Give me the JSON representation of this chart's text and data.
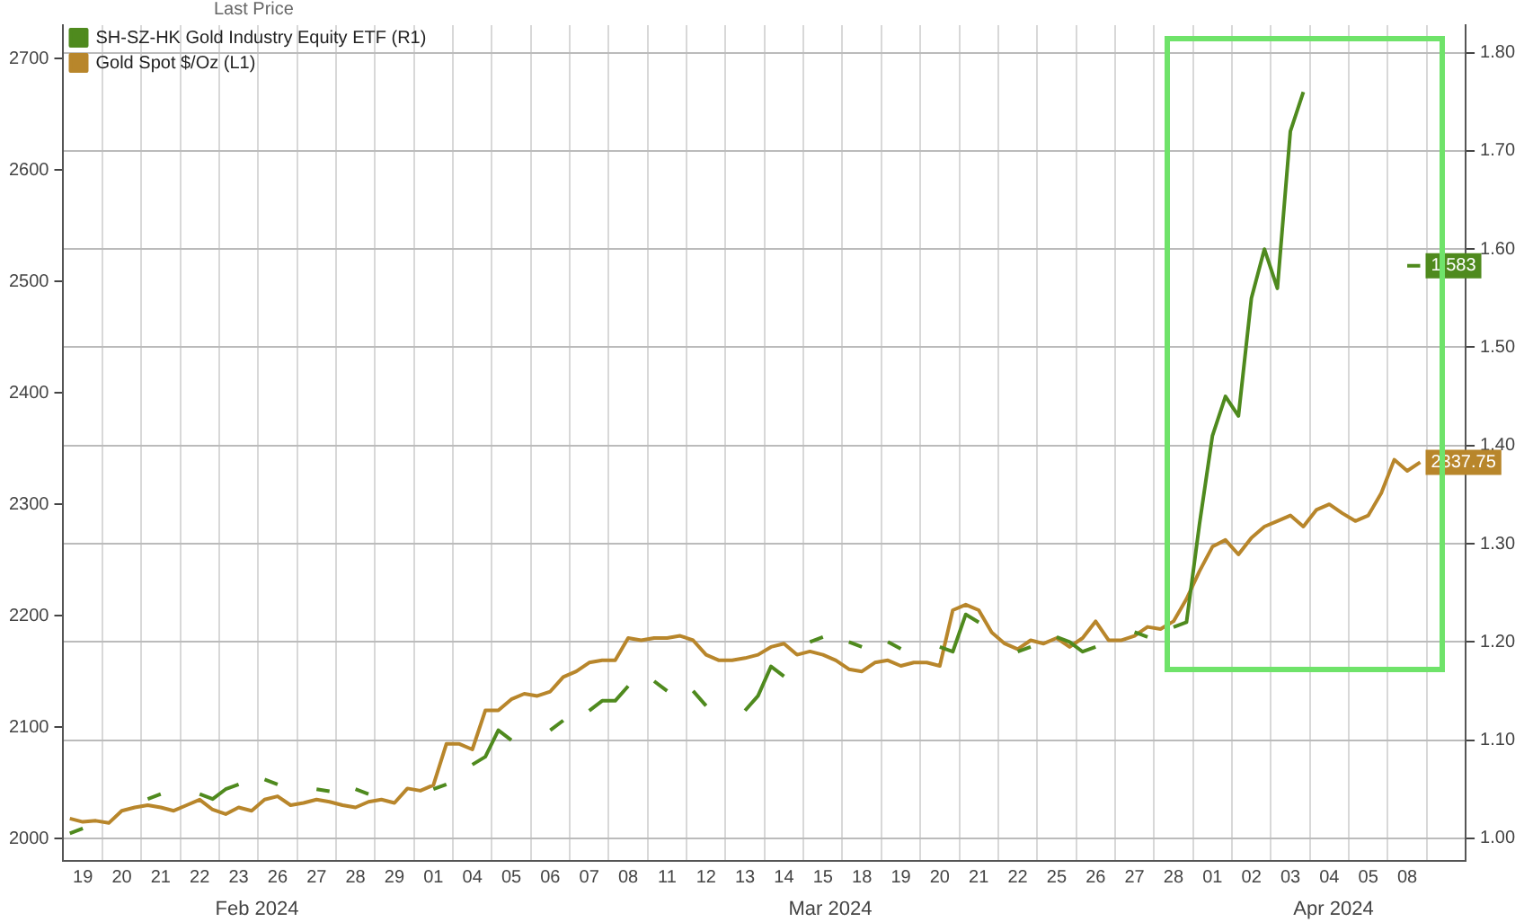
{
  "chart_data": {
    "type": "line",
    "categories": [
      null,
      "19",
      null,
      null,
      "20",
      null,
      null,
      "21",
      null,
      null,
      "22",
      null,
      null,
      "23",
      null,
      null,
      "26",
      null,
      null,
      "27",
      null,
      null,
      "28",
      null,
      null,
      "29",
      null,
      null,
      "01",
      null,
      null,
      "04",
      null,
      null,
      "05",
      null,
      null,
      "06",
      null,
      null,
      "07",
      null,
      null,
      "08",
      null,
      null,
      "11",
      null,
      null,
      "12",
      null,
      null,
      "13",
      null,
      null,
      "14",
      null,
      null,
      "15",
      null,
      null,
      "18",
      null,
      null,
      "19",
      null,
      null,
      "20",
      null,
      null,
      "21",
      null,
      null,
      "22",
      null,
      null,
      "25",
      null,
      null,
      "26",
      null,
      null,
      "27",
      null,
      null,
      "28",
      null,
      null,
      "01",
      null,
      null,
      "02",
      null,
      null,
      "03",
      null,
      null,
      "04",
      null,
      null,
      "05",
      null,
      null,
      "08",
      null,
      null,
      null,
      null
    ],
    "series": [
      {
        "name": "SH-SZ-HK Gold Industry Equity ETF (R1)",
        "color": "#4f8a1e",
        "axis": "y2",
        "values": [
          1.005,
          1.01,
          null,
          null,
          null,
          null,
          1.04,
          1.045,
          null,
          null,
          1.045,
          1.04,
          1.05,
          1.055,
          null,
          1.06,
          1.055,
          null,
          null,
          1.05,
          1.048,
          null,
          1.05,
          1.045,
          null,
          null,
          null,
          null,
          1.05,
          1.055,
          null,
          1.075,
          1.083,
          1.11,
          1.1,
          null,
          null,
          1.11,
          1.12,
          null,
          1.13,
          1.14,
          1.14,
          1.155,
          null,
          1.16,
          1.15,
          null,
          1.15,
          1.135,
          null,
          null,
          1.13,
          1.145,
          1.175,
          1.165,
          null,
          1.2,
          1.205,
          null,
          1.2,
          1.195,
          null,
          1.2,
          1.193,
          null,
          null,
          1.195,
          1.19,
          1.228,
          1.22,
          null,
          null,
          1.19,
          1.195,
          null,
          1.205,
          1.2,
          1.19,
          1.195,
          null,
          null,
          1.21,
          1.205,
          null,
          1.215,
          1.22,
          1.32,
          1.41,
          1.45,
          1.43,
          1.55,
          1.6,
          1.56,
          1.72,
          1.76,
          null,
          null,
          null,
          null,
          null,
          null,
          null,
          1.583,
          1.583,
          null,
          null,
          null
        ],
        "value_labels": [
          null,
          null,
          null,
          null,
          null,
          null,
          null,
          null,
          null,
          null,
          null,
          null,
          null,
          null,
          null,
          null,
          null,
          null,
          null,
          null,
          null,
          null,
          null,
          null,
          null,
          null,
          null,
          null,
          null,
          null,
          null,
          null,
          null,
          null,
          null,
          null,
          null,
          null,
          null,
          null,
          null,
          null,
          null,
          null,
          null,
          null,
          null,
          null,
          null,
          null,
          null,
          null,
          null,
          null,
          null,
          null,
          null,
          null,
          null,
          null,
          null,
          null,
          null,
          null,
          null,
          null,
          null,
          null,
          null,
          null,
          null,
          null,
          null,
          null,
          null,
          null,
          null,
          null,
          null,
          null,
          null,
          null,
          null,
          null,
          null,
          null,
          null,
          null,
          null,
          null,
          null,
          null,
          null,
          null,
          null,
          null,
          null,
          null,
          null,
          null,
          null,
          null,
          null,
          null,
          "1.583",
          null,
          null,
          null
        ]
      },
      {
        "name": "Gold Spot $/Oz (L1)",
        "color": "#b8862b",
        "axis": "y",
        "values": [
          2018,
          2015,
          2016,
          2014,
          2025,
          2028,
          2030,
          2028,
          2025,
          2030,
          2035,
          2026,
          2022,
          2028,
          2025,
          2035,
          2038,
          2030,
          2032,
          2035,
          2033,
          2030,
          2028,
          2033,
          2035,
          2032,
          2045,
          2043,
          2048,
          2085,
          2085,
          2080,
          2115,
          2115,
          2125,
          2130,
          2128,
          2132,
          2145,
          2150,
          2158,
          2160,
          2160,
          2180,
          2178,
          2180,
          2180,
          2182,
          2178,
          2165,
          2160,
          2160,
          2162,
          2165,
          2172,
          2175,
          2165,
          2168,
          2165,
          2160,
          2152,
          2150,
          2158,
          2160,
          2155,
          2158,
          2158,
          2155,
          2205,
          2210,
          2205,
          2185,
          2175,
          2170,
          2178,
          2175,
          2180,
          2172,
          2180,
          2195,
          2178,
          2178,
          2182,
          2190,
          2188,
          2195,
          2215,
          2240,
          2262,
          2268,
          2255,
          2270,
          2280,
          2285,
          2290,
          2280,
          2295,
          2300,
          2292,
          2285,
          2290,
          2310,
          2340,
          2330,
          2337.75,
          null,
          null,
          null
        ],
        "value_labels": [
          null,
          null,
          null,
          null,
          null,
          null,
          null,
          null,
          null,
          null,
          null,
          null,
          null,
          null,
          null,
          null,
          null,
          null,
          null,
          null,
          null,
          null,
          null,
          null,
          null,
          null,
          null,
          null,
          null,
          null,
          null,
          null,
          null,
          null,
          null,
          null,
          null,
          null,
          null,
          null,
          null,
          null,
          null,
          null,
          null,
          null,
          null,
          null,
          null,
          null,
          null,
          null,
          null,
          null,
          null,
          null,
          null,
          null,
          null,
          null,
          null,
          null,
          null,
          null,
          null,
          null,
          null,
          null,
          null,
          null,
          null,
          null,
          null,
          null,
          null,
          null,
          null,
          null,
          null,
          null,
          null,
          null,
          null,
          null,
          null,
          null,
          null,
          null,
          null,
          null,
          null,
          null,
          null,
          null,
          null,
          null,
          null,
          null,
          null,
          null,
          null,
          null,
          null,
          null,
          "2337.75",
          null,
          null,
          null
        ]
      }
    ],
    "legend_title": "Last Price",
    "legend": "top left",
    "ylim": [
      1980,
      2730
    ],
    "yticks": [
      2000,
      2100,
      2200,
      2300,
      2400,
      2500,
      2600,
      2700
    ],
    "y2lim": [
      0.977,
      1.828
    ],
    "y2ticks": [
      {
        "value": 1,
        "label": "1.00"
      },
      {
        "value": 1.1,
        "label": "1.10"
      },
      {
        "value": 1.2,
        "label": "1.20"
      },
      {
        "value": 1.3,
        "label": "1.30"
      },
      {
        "value": 1.4,
        "label": "1.40"
      },
      {
        "value": 1.5,
        "label": "1.50"
      },
      {
        "value": 1.6,
        "label": "1.60"
      },
      {
        "value": 1.7,
        "label": "1.70"
      },
      {
        "value": 1.8,
        "label": "1.80"
      }
    ],
    "grid": true,
    "marker": "none",
    "line_style": "solid",
    "annotations": [
      "Feb 2024",
      "Mar 2024",
      "Apr 2024"
    ]
  }
}
